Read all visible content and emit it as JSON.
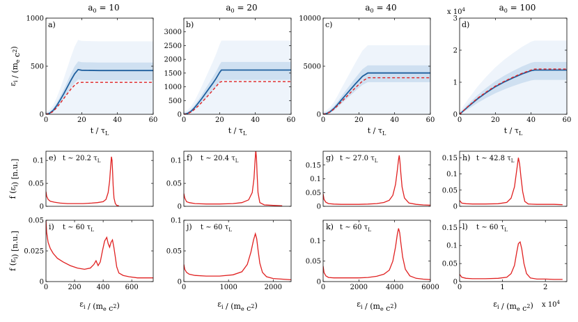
{
  "chart_data": [
    {
      "type": "heatmap",
      "panel_label": "a)",
      "column_title": "a",
      "column_title_sub": "0",
      "column_title_value": "= 10",
      "xlabel": "t / τ",
      "xlabel_sub": "L",
      "ylabel_parts": [
        "ε",
        "i",
        " / (m",
        "e",
        " c",
        "2",
        ")"
      ],
      "xlim": [
        0,
        60
      ],
      "ylim": [
        0,
        1000
      ],
      "xticks": [
        0,
        20,
        40,
        60
      ],
      "xtick_labels": [
        "0",
        "20",
        "40",
        "60"
      ],
      "yticks": [
        0,
        500,
        1000
      ],
      "ytick_labels": [
        "0",
        "500",
        "1000"
      ],
      "series": [
        {
          "style": "solid",
          "color": "#1f5f9e",
          "x": [
            0,
            2,
            4,
            6,
            8,
            10,
            12,
            14,
            16,
            18,
            20,
            30,
            40,
            50,
            60
          ],
          "y": [
            0,
            10,
            40,
            90,
            150,
            215,
            285,
            355,
            420,
            465,
            458,
            455,
            455,
            455,
            455
          ]
        },
        {
          "style": "dashed",
          "color": "#e02020",
          "x": [
            0,
            2,
            4,
            6,
            8,
            10,
            12,
            14,
            16,
            18,
            20,
            30,
            40,
            50,
            60
          ],
          "y": [
            0,
            8,
            30,
            70,
            115,
            165,
            215,
            262,
            302,
            330,
            332,
            332,
            332,
            332,
            332
          ]
        }
      ]
    },
    {
      "type": "heatmap",
      "panel_label": "b)",
      "column_title": "a",
      "column_title_sub": "0",
      "column_title_value": "= 20",
      "xlabel": "t / τ",
      "xlabel_sub": "L",
      "xlim": [
        0,
        60
      ],
      "ylim": [
        0,
        3500
      ],
      "xticks": [
        0,
        20,
        40,
        60
      ],
      "xtick_labels": [
        "0",
        "20",
        "40",
        "60"
      ],
      "yticks": [
        0,
        500,
        1000,
        1500,
        2000,
        2500,
        3000
      ],
      "ytick_labels": [
        "0",
        "500",
        "1000",
        "1500",
        "2000",
        "2500",
        "3000"
      ],
      "series": [
        {
          "style": "solid",
          "color": "#1f5f9e",
          "x": [
            0,
            2,
            4,
            6,
            8,
            10,
            12,
            14,
            16,
            18,
            20,
            21,
            30,
            40,
            50,
            60
          ],
          "y": [
            0,
            30,
            110,
            240,
            400,
            570,
            750,
            930,
            1110,
            1300,
            1520,
            1610,
            1610,
            1610,
            1610,
            1610
          ]
        },
        {
          "style": "dashed",
          "color": "#e02020",
          "x": [
            0,
            2,
            4,
            6,
            8,
            10,
            12,
            14,
            16,
            18,
            20,
            21,
            30,
            40,
            50,
            60
          ],
          "y": [
            0,
            20,
            80,
            180,
            300,
            430,
            570,
            710,
            860,
            1010,
            1160,
            1190,
            1190,
            1190,
            1190,
            1190
          ]
        }
      ]
    },
    {
      "type": "heatmap",
      "panel_label": "c)",
      "column_title": "a",
      "column_title_sub": "0",
      "column_title_value": "= 40",
      "xlabel": "t / τ",
      "xlabel_sub": "L",
      "xlim": [
        0,
        60
      ],
      "ylim": [
        0,
        10000
      ],
      "xticks": [
        0,
        20,
        40,
        60
      ],
      "xtick_labels": [
        "0",
        "20",
        "40",
        "60"
      ],
      "yticks": [
        0,
        5000,
        10000
      ],
      "ytick_labels": [
        "0",
        "5000",
        "10000"
      ],
      "series": [
        {
          "style": "solid",
          "color": "#1f5f9e",
          "x": [
            0,
            2,
            4,
            6,
            8,
            10,
            14,
            18,
            22,
            25,
            30,
            40,
            50,
            60
          ],
          "y": [
            0,
            80,
            280,
            600,
            1000,
            1450,
            2300,
            3150,
            3950,
            4300,
            4300,
            4300,
            4300,
            4300
          ]
        },
        {
          "style": "dashed",
          "color": "#e02020",
          "x": [
            0,
            2,
            4,
            6,
            8,
            10,
            14,
            18,
            22,
            25,
            30,
            40,
            50,
            60
          ],
          "y": [
            0,
            70,
            250,
            530,
            880,
            1250,
            2000,
            2750,
            3450,
            3800,
            3800,
            3800,
            3800,
            3800
          ]
        }
      ]
    },
    {
      "type": "heatmap",
      "panel_label": "d)",
      "column_title": "a",
      "column_title_sub": "0",
      "column_title_value": "= 100",
      "multiplier": "x 10",
      "multiplier_exp": "4",
      "xlabel": "t / τ",
      "xlabel_sub": "L",
      "xlim": [
        0,
        60
      ],
      "ylim": [
        0,
        3
      ],
      "xticks": [
        0,
        20,
        40,
        60
      ],
      "xtick_labels": [
        "0",
        "20",
        "40",
        "60"
      ],
      "yticks": [
        0,
        1,
        2,
        3
      ],
      "ytick_labels": [
        "0",
        "1",
        "2",
        "3"
      ],
      "series": [
        {
          "style": "solid",
          "color": "#1f5f9e",
          "x": [
            0,
            5,
            10,
            15,
            20,
            25,
            30,
            35,
            40,
            42,
            50,
            60
          ],
          "y": [
            0,
            0.25,
            0.48,
            0.68,
            0.86,
            1.01,
            1.14,
            1.26,
            1.36,
            1.38,
            1.38,
            1.38
          ]
        },
        {
          "style": "dashed",
          "color": "#e02020",
          "x": [
            0,
            5,
            10,
            15,
            20,
            25,
            30,
            35,
            40,
            42,
            50,
            60
          ],
          "y": [
            0,
            0.26,
            0.5,
            0.7,
            0.88,
            1.03,
            1.16,
            1.28,
            1.38,
            1.41,
            1.41,
            1.41
          ]
        }
      ]
    },
    {
      "type": "line",
      "panel_label": "e)",
      "annotation": "t ~ 20.2 τ",
      "annotation_sub": "L",
      "ylabel_parts": [
        "f (ε",
        "i",
        ") [n.u.]"
      ],
      "xlim": [
        0,
        750
      ],
      "ylim": [
        0,
        0.12
      ],
      "yticks": [
        0,
        0.05,
        0.1
      ],
      "ytick_labels": [
        "0",
        "0.05",
        "0.1"
      ],
      "series": [
        {
          "color": "#e02020",
          "x": [
            0,
            5,
            15,
            30,
            60,
            100,
            150,
            200,
            260,
            320,
            360,
            400,
            420,
            435,
            445,
            452,
            458,
            462,
            466,
            470,
            476,
            485,
            495,
            510
          ],
          "y": [
            0.032,
            0.022,
            0.015,
            0.011,
            0.009,
            0.007,
            0.006,
            0.006,
            0.006,
            0.007,
            0.008,
            0.01,
            0.015,
            0.03,
            0.055,
            0.085,
            0.108,
            0.1,
            0.075,
            0.045,
            0.018,
            0.006,
            0.002,
            0.001
          ]
        }
      ]
    },
    {
      "type": "line",
      "panel_label": "f)",
      "annotation": "t ~ 20.4 τ",
      "annotation_sub": "L",
      "xlim": [
        0,
        2400
      ],
      "ylim": [
        0,
        0.12
      ],
      "yticks": [
        0,
        0.05,
        0.1
      ],
      "ytick_labels": [
        "0",
        "0.05",
        "0.1"
      ],
      "series": [
        {
          "color": "#e02020",
          "x": [
            0,
            20,
            60,
            120,
            250,
            500,
            800,
            1100,
            1300,
            1450,
            1530,
            1570,
            1595,
            1610,
            1625,
            1640,
            1660,
            1700,
            1800,
            2000,
            2200
          ],
          "y": [
            0.028,
            0.018,
            0.01,
            0.008,
            0.006,
            0.005,
            0.005,
            0.006,
            0.008,
            0.014,
            0.03,
            0.06,
            0.1,
            0.122,
            0.105,
            0.07,
            0.03,
            0.008,
            0.003,
            0.002,
            0.001
          ]
        }
      ]
    },
    {
      "type": "line",
      "panel_label": "g)",
      "annotation": "t ~ 27.0 τ",
      "annotation_sub": "L",
      "xlim": [
        0,
        6000
      ],
      "ylim": [
        0,
        0.2
      ],
      "yticks": [
        0,
        0.05,
        0.1,
        0.15
      ],
      "ytick_labels": [
        "0",
        "0.05",
        "0.1",
        "0.15"
      ],
      "series": [
        {
          "color": "#e02020",
          "x": [
            0,
            50,
            150,
            300,
            600,
            1000,
            1500,
            2000,
            2500,
            3000,
            3400,
            3700,
            3900,
            4050,
            4150,
            4220,
            4260,
            4300,
            4350,
            4420,
            4550,
            4800,
            5200,
            5600,
            6000
          ],
          "y": [
            0.045,
            0.025,
            0.015,
            0.01,
            0.008,
            0.007,
            0.007,
            0.007,
            0.008,
            0.01,
            0.014,
            0.022,
            0.04,
            0.08,
            0.13,
            0.17,
            0.185,
            0.16,
            0.12,
            0.07,
            0.03,
            0.012,
            0.007,
            0.005,
            0.004
          ]
        }
      ]
    },
    {
      "type": "line",
      "panel_label": "h)",
      "annotation": "t ~ 42.8 τ",
      "annotation_sub": "L",
      "xlim": [
        0,
        2.5
      ],
      "ylim": [
        0,
        0.17
      ],
      "yticks": [
        0,
        0.05,
        0.1,
        0.15
      ],
      "ytick_labels": [
        "0",
        "0.05",
        "0.1",
        "0.15"
      ],
      "series": [
        {
          "color": "#e02020",
          "x": [
            0,
            0.05,
            0.15,
            0.3,
            0.6,
            0.9,
            1.1,
            1.2,
            1.28,
            1.33,
            1.37,
            1.4,
            1.43,
            1.47,
            1.52,
            1.6,
            1.8,
            2.0,
            2.2,
            2.4
          ],
          "y": [
            0.018,
            0.01,
            0.008,
            0.007,
            0.007,
            0.008,
            0.012,
            0.025,
            0.06,
            0.11,
            0.15,
            0.13,
            0.09,
            0.045,
            0.015,
            0.007,
            0.006,
            0.006,
            0.006,
            0.005
          ]
        }
      ]
    },
    {
      "type": "line",
      "panel_label": "i)",
      "annotation": "t ~ 60 τ",
      "annotation_sub": "L",
      "ylabel_parts": [
        "f (ε",
        "i",
        ") [n.u.]"
      ],
      "xlabel_parts": [
        "ε",
        "i",
        " / (m",
        "e",
        " c",
        "2",
        ")"
      ],
      "xlim": [
        0,
        750
      ],
      "ylim": [
        0,
        0.05
      ],
      "xticks": [
        0,
        200,
        400,
        600
      ],
      "xtick_labels": [
        "0",
        "200",
        "400",
        "600"
      ],
      "yticks": [
        0,
        0.025,
        0.05
      ],
      "ytick_labels": [
        "0",
        "0.025",
        "0.05"
      ],
      "series": [
        {
          "color": "#e02020",
          "x": [
            0,
            5,
            15,
            30,
            50,
            80,
            120,
            170,
            220,
            270,
            310,
            335,
            350,
            365,
            380,
            395,
            410,
            425,
            435,
            445,
            455,
            465,
            475,
            485,
            495,
            510,
            540,
            580,
            640,
            700,
            750
          ],
          "y": [
            0.05,
            0.04,
            0.032,
            0.027,
            0.023,
            0.019,
            0.016,
            0.013,
            0.011,
            0.01,
            0.011,
            0.014,
            0.017,
            0.013,
            0.016,
            0.025,
            0.033,
            0.036,
            0.031,
            0.028,
            0.032,
            0.034,
            0.028,
            0.02,
            0.012,
            0.007,
            0.005,
            0.004,
            0.003,
            0.003,
            0.003
          ]
        }
      ]
    },
    {
      "type": "line",
      "panel_label": "j)",
      "annotation": "t ~ 60 τ",
      "annotation_sub": "L",
      "xlabel_parts": [
        "ε",
        "i",
        " / (m",
        "e",
        " c",
        "2",
        ")"
      ],
      "xlim": [
        0,
        2400
      ],
      "ylim": [
        0,
        0.1
      ],
      "xticks": [
        0,
        1000,
        2000
      ],
      "xtick_labels": [
        "0",
        "1000",
        "2000"
      ],
      "yticks": [
        0,
        0.05,
        0.1
      ],
      "ytick_labels": [
        "0",
        "0.05",
        "0.1"
      ],
      "series": [
        {
          "color": "#e02020",
          "x": [
            0,
            20,
            60,
            120,
            250,
            500,
            800,
            1100,
            1300,
            1420,
            1500,
            1560,
            1600,
            1630,
            1660,
            1700,
            1760,
            1850,
            2000,
            2200,
            2400
          ],
          "y": [
            0.028,
            0.02,
            0.015,
            0.012,
            0.01,
            0.009,
            0.009,
            0.011,
            0.016,
            0.028,
            0.048,
            0.068,
            0.078,
            0.07,
            0.052,
            0.03,
            0.015,
            0.008,
            0.005,
            0.004,
            0.003
          ]
        }
      ]
    },
    {
      "type": "line",
      "panel_label": "k)",
      "annotation": "t ~ 60 τ",
      "annotation_sub": "L",
      "xlabel_parts": [
        "ε",
        "i",
        " / (m",
        "e",
        " c",
        "2",
        ")"
      ],
      "xlim": [
        0,
        6000
      ],
      "ylim": [
        0,
        0.15
      ],
      "xticks": [
        0,
        2000,
        4000,
        6000
      ],
      "xtick_labels": [
        "0",
        "2000",
        "4000",
        "6000"
      ],
      "yticks": [
        0,
        0.05,
        0.1
      ],
      "ytick_labels": [
        "0",
        "0.05",
        "0.1"
      ],
      "series": [
        {
          "color": "#e02020",
          "x": [
            0,
            50,
            150,
            300,
            600,
            1000,
            1500,
            2000,
            2500,
            3000,
            3400,
            3700,
            3900,
            4050,
            4150,
            4220,
            4280,
            4350,
            4450,
            4600,
            4850,
            5200,
            5600,
            6000
          ],
          "y": [
            0.038,
            0.022,
            0.014,
            0.01,
            0.009,
            0.009,
            0.009,
            0.009,
            0.01,
            0.013,
            0.018,
            0.028,
            0.05,
            0.085,
            0.115,
            0.13,
            0.12,
            0.095,
            0.06,
            0.03,
            0.014,
            0.008,
            0.006,
            0.005
          ]
        }
      ]
    },
    {
      "type": "line",
      "panel_label": "l)",
      "annotation": "t ~ 60 τ",
      "annotation_sub": "L",
      "multiplier": "x 10",
      "multiplier_exp": "4",
      "xlabel_parts": [
        "ε",
        "i",
        " / (m",
        "e",
        " c",
        "2",
        ")"
      ],
      "xlim": [
        0,
        2.5
      ],
      "ylim": [
        0,
        0.17
      ],
      "xticks": [
        0,
        1,
        2
      ],
      "xtick_labels": [
        "0",
        "1",
        "2"
      ],
      "yticks": [
        0,
        0.05,
        0.1,
        0.15
      ],
      "ytick_labels": [
        "0",
        "0.05",
        "0.1",
        "0.15"
      ],
      "series": [
        {
          "color": "#e02020",
          "x": [
            0,
            0.05,
            0.15,
            0.3,
            0.6,
            0.9,
            1.1,
            1.2,
            1.28,
            1.33,
            1.37,
            1.41,
            1.45,
            1.5,
            1.56,
            1.65,
            1.8,
            2.0,
            2.2,
            2.4
          ],
          "y": [
            0.02,
            0.012,
            0.009,
            0.008,
            0.008,
            0.009,
            0.012,
            0.022,
            0.045,
            0.08,
            0.105,
            0.11,
            0.09,
            0.05,
            0.022,
            0.01,
            0.007,
            0.007,
            0.006,
            0.006
          ]
        }
      ]
    }
  ]
}
